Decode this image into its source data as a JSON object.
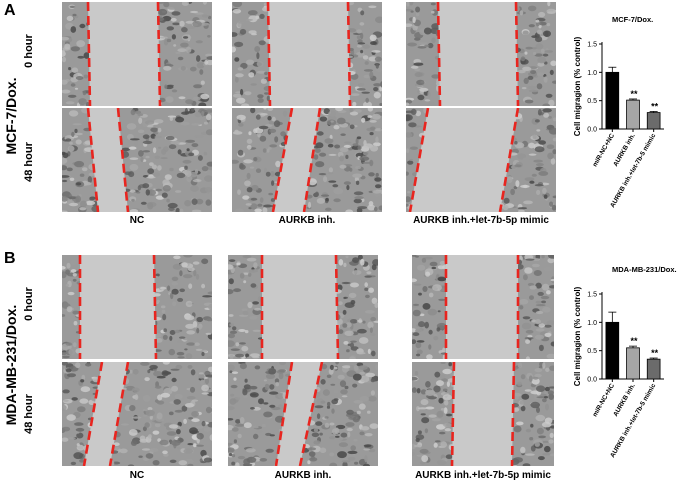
{
  "panels": [
    {
      "letter": "A",
      "row_title": "MCF-7/Dox.",
      "time_labels": [
        "0 hour",
        "48 hour"
      ],
      "conditions": [
        "NC",
        "AURKB inh.",
        "AURKB inh.+let-7b-5p mimic"
      ]
    },
    {
      "letter": "B",
      "row_title": "MDA-MB-231/Dox.",
      "time_labels": [
        "0 hour",
        "48 hour"
      ],
      "conditions": [
        "NC",
        "AURKB inh.",
        "AURKB inh.+let-7b-5p mimic"
      ]
    }
  ],
  "colors": {
    "wound_line": "#e8251f",
    "background_cells": "#9a9a9a",
    "gap": "#c9c9c9",
    "bars": [
      "#000000",
      "#a6a6a6",
      "#6b6b6b"
    ]
  },
  "chart_data": [
    {
      "type": "bar",
      "title": "MCF-7/Dox.",
      "ylabel": "Cell migragion (% control)",
      "categories": [
        "miR-NC+NC",
        "AURKB inh.",
        "AURKB inh.+let-7b-5 mimic"
      ],
      "values": [
        1.0,
        0.51,
        0.29
      ],
      "errors": [
        0.09,
        0.02,
        0.02
      ],
      "significance": [
        "",
        "**",
        "**"
      ],
      "ylim": [
        0,
        1.5
      ],
      "yticks": [
        "0.0",
        "0.5",
        "1.0",
        "1.5"
      ]
    },
    {
      "type": "bar",
      "title": "MDA-MB-231/Dox.",
      "ylabel": "Cell migragion (% control)",
      "categories": [
        "miR-NC+NC",
        "AURKB inh.",
        "AURKB inh.+let-7b-5 mimic"
      ],
      "values": [
        1.0,
        0.55,
        0.35
      ],
      "errors": [
        0.18,
        0.03,
        0.02
      ],
      "significance": [
        "",
        "**",
        "**"
      ],
      "ylim": [
        0,
        1.5
      ],
      "yticks": [
        "0.0",
        "0.5",
        "1.0",
        "1.5"
      ]
    }
  ]
}
